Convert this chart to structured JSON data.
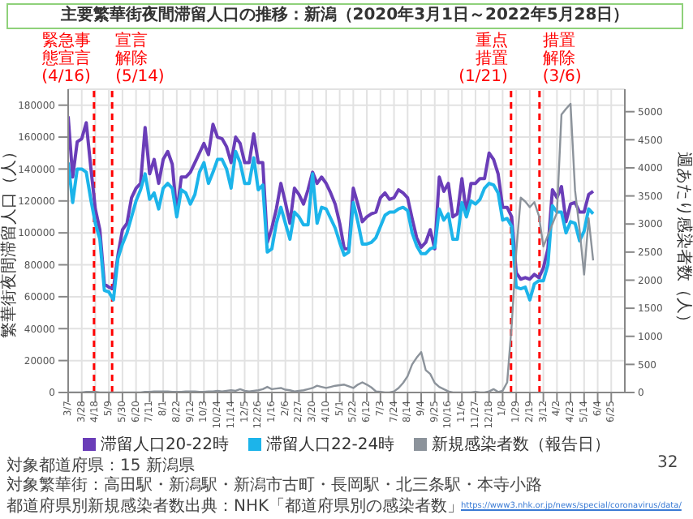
{
  "chart_data": {
    "type": "line",
    "title": "主要繁華街夜間滞留人口の推移：新潟（2020年3月1日～2022年5月28日）",
    "ylabel": "繁華街夜間滞留人口（人）",
    "y2label": "週あたり感染者数（人）",
    "x": [
      "2020-03-07",
      "2020-03-14",
      "2020-03-21",
      "2020-03-28",
      "2020-04-04",
      "2020-04-11",
      "2020-04-18",
      "2020-04-25",
      "2020-05-02",
      "2020-05-09",
      "2020-05-16",
      "2020-05-23",
      "2020-05-30",
      "2020-06-06",
      "2020-06-13",
      "2020-06-20",
      "2020-06-27",
      "2020-07-04",
      "2020-07-11",
      "2020-07-18",
      "2020-07-25",
      "2020-08-01",
      "2020-08-08",
      "2020-08-15",
      "2020-08-22",
      "2020-08-29",
      "2020-09-05",
      "2020-09-12",
      "2020-09-19",
      "2020-09-26",
      "2020-10-03",
      "2020-10-10",
      "2020-10-17",
      "2020-10-24",
      "2020-10-31",
      "2020-11-07",
      "2020-11-14",
      "2020-11-21",
      "2020-11-28",
      "2020-12-05",
      "2020-12-12",
      "2020-12-19",
      "2020-12-26",
      "2021-01-02",
      "2021-01-09",
      "2021-01-16",
      "2021-01-23",
      "2021-01-30",
      "2021-02-06",
      "2021-02-13",
      "2021-02-20",
      "2021-02-27",
      "2021-03-06",
      "2021-03-13",
      "2021-03-20",
      "2021-03-27",
      "2021-04-03",
      "2021-04-10",
      "2021-04-17",
      "2021-04-24",
      "2021-05-01",
      "2021-05-08",
      "2021-05-15",
      "2021-05-22",
      "2021-05-29",
      "2021-06-05",
      "2021-06-12",
      "2021-06-19",
      "2021-06-26",
      "2021-07-03",
      "2021-07-10",
      "2021-07-17",
      "2021-07-24",
      "2021-07-31",
      "2021-08-07",
      "2021-08-14",
      "2021-08-21",
      "2021-08-28",
      "2021-09-04",
      "2021-09-11",
      "2021-09-18",
      "2021-09-25",
      "2021-10-02",
      "2021-10-09",
      "2021-10-16",
      "2021-10-23",
      "2021-10-30",
      "2021-11-06",
      "2021-11-13",
      "2021-11-20",
      "2021-11-27",
      "2021-12-04",
      "2021-12-11",
      "2021-12-18",
      "2021-12-25",
      "2022-01-01",
      "2022-01-08",
      "2022-01-15",
      "2022-01-22",
      "2022-01-29",
      "2022-02-05",
      "2022-02-12",
      "2022-02-19",
      "2022-02-26",
      "2022-03-05",
      "2022-03-12",
      "2022-03-19",
      "2022-03-26",
      "2022-04-02",
      "2022-04-09",
      "2022-04-16",
      "2022-04-23",
      "2022-04-30",
      "2022-05-07",
      "2022-05-14",
      "2022-05-21",
      "2022-05-28"
    ],
    "series": [
      {
        "name": "滞留人口20-22時",
        "color": "#6a3db8",
        "values": [
          173000,
          135000,
          157000,
          159000,
          169000,
          141000,
          115000,
          102000,
          68000,
          66000,
          65000,
          86000,
          102000,
          106000,
          122000,
          128000,
          131000,
          166000,
          137000,
          146000,
          131000,
          146000,
          151000,
          143000,
          112000,
          135000,
          135000,
          138000,
          144000,
          150000,
          156000,
          149000,
          168000,
          160000,
          159000,
          154000,
          144000,
          160000,
          156000,
          144000,
          144000,
          162000,
          144000,
          144000,
          94000,
          103000,
          115000,
          131000,
          119000,
          106000,
          128000,
          124000,
          118000,
          127000,
          138000,
          131000,
          135000,
          131000,
          125000,
          118000,
          106000,
          90000,
          90000,
          128000,
          118000,
          107000,
          110000,
          112000,
          113000,
          122000,
          125000,
          121000,
          122000,
          127000,
          125000,
          122000,
          109000,
          97000,
          91000,
          94000,
          102000,
          90000,
          135000,
          126000,
          131000,
          110000,
          112000,
          134000,
          112000,
          131000,
          131000,
          134000,
          134000,
          150000,
          146000,
          137000,
          116000,
          116000,
          110000,
          75000,
          71000,
          72000,
          71000,
          74000,
          72000,
          78000,
          90000,
          127000,
          122000,
          129000,
          107000,
          118000,
          119000,
          113000,
          113000,
          124000,
          126000
        ]
      },
      {
        "name": "滞留人口22-24時",
        "color": "#1cb4ea",
        "values": [
          144000,
          119000,
          140000,
          140000,
          138000,
          121000,
          106000,
          96000,
          64000,
          63000,
          58000,
          84000,
          93000,
          100000,
          110000,
          120000,
          127000,
          137000,
          121000,
          125000,
          115000,
          128000,
          131000,
          128000,
          110000,
          127000,
          125000,
          118000,
          124000,
          138000,
          144000,
          131000,
          138000,
          146000,
          146000,
          140000,
          128000,
          151000,
          144000,
          131000,
          131000,
          147000,
          127000,
          130000,
          88000,
          90000,
          106000,
          116000,
          106000,
          96000,
          113000,
          110000,
          105000,
          105000,
          137000,
          106000,
          116000,
          115000,
          109000,
          103000,
          94000,
          86000,
          88000,
          119000,
          107000,
          93000,
          93000,
          94000,
          97000,
          104000,
          111000,
          113000,
          113000,
          115000,
          116000,
          114000,
          100000,
          92000,
          87000,
          87000,
          90000,
          91000,
          115000,
          108000,
          112000,
          96000,
          96000,
          119000,
          110000,
          120000,
          118000,
          121000,
          128000,
          131000,
          130000,
          125000,
          108000,
          109000,
          104000,
          66000,
          65000,
          66000,
          58000,
          68000,
          70000,
          70000,
          80000,
          117000,
          113000,
          113000,
          100000,
          107000,
          106000,
          95000,
          101000,
          115000,
          112000
        ]
      },
      {
        "name": "新規感染者数（報告日）",
        "color": "#8c939b",
        "axis": "y2",
        "values": [
          0,
          0,
          0,
          0,
          10,
          10,
          10,
          0,
          0,
          0,
          0,
          0,
          0,
          0,
          0,
          0,
          0,
          10,
          10,
          20,
          20,
          20,
          20,
          10,
          10,
          10,
          20,
          20,
          20,
          10,
          10,
          20,
          20,
          30,
          20,
          30,
          40,
          30,
          60,
          30,
          20,
          30,
          40,
          60,
          100,
          60,
          70,
          80,
          50,
          40,
          20,
          30,
          40,
          60,
          80,
          120,
          100,
          80,
          100,
          120,
          130,
          140,
          110,
          80,
          140,
          180,
          140,
          90,
          20,
          10,
          0,
          0,
          20,
          80,
          170,
          290,
          500,
          620,
          720,
          400,
          330,
          170,
          100,
          60,
          20,
          0,
          0,
          0,
          0,
          0,
          10,
          0,
          0,
          20,
          60,
          10,
          30,
          180,
          1200,
          2500,
          3470,
          3400,
          3300,
          3390,
          3150,
          2600,
          2800,
          3000,
          3200,
          4950,
          5050,
          5140,
          3600,
          2900,
          2100,
          3100,
          2350
        ]
      }
    ],
    "xlim": [
      "2020-03-07",
      "2022-07-16"
    ],
    "xticks": [
      {
        "value": "2020-03-07",
        "label": "3/7"
      },
      {
        "value": "2020-03-28",
        "label": "3/28"
      },
      {
        "value": "2020-04-18",
        "label": "4/18"
      },
      {
        "value": "2020-05-09",
        "label": "5/9"
      },
      {
        "value": "2020-05-30",
        "label": "5/30"
      },
      {
        "value": "2020-06-20",
        "label": "6/20"
      },
      {
        "value": "2020-07-11",
        "label": "7/11"
      },
      {
        "value": "2020-08-01",
        "label": "8/1"
      },
      {
        "value": "2020-08-22",
        "label": "8/22"
      },
      {
        "value": "2020-09-12",
        "label": "9/12"
      },
      {
        "value": "2020-10-03",
        "label": "10/3"
      },
      {
        "value": "2020-10-24",
        "label": "10/24"
      },
      {
        "value": "2020-11-14",
        "label": "11/14"
      },
      {
        "value": "2020-12-05",
        "label": "12/5"
      },
      {
        "value": "2020-12-26",
        "label": "12/26"
      },
      {
        "value": "2021-01-16",
        "label": "1/16"
      },
      {
        "value": "2021-02-06",
        "label": "2/6"
      },
      {
        "value": "2021-02-27",
        "label": "2/27"
      },
      {
        "value": "2021-03-20",
        "label": "3/20"
      },
      {
        "value": "2021-04-10",
        "label": "4/10"
      },
      {
        "value": "2021-05-01",
        "label": "5/1"
      },
      {
        "value": "2021-05-22",
        "label": "5/22"
      },
      {
        "value": "2021-06-12",
        "label": "6/12"
      },
      {
        "value": "2021-07-03",
        "label": "7/3"
      },
      {
        "value": "2021-07-24",
        "label": "7/24"
      },
      {
        "value": "2021-08-14",
        "label": "8/14"
      },
      {
        "value": "2021-09-04",
        "label": "9/4"
      },
      {
        "value": "2021-09-25",
        "label": "9/25"
      },
      {
        "value": "2021-10-16",
        "label": "10/16"
      },
      {
        "value": "2021-11-06",
        "label": "11/6"
      },
      {
        "value": "2021-11-27",
        "label": "11/27"
      },
      {
        "value": "2021-12-18",
        "label": "12/18"
      },
      {
        "value": "2022-01-08",
        "label": "1/8"
      },
      {
        "value": "2022-01-29",
        "label": "1/29"
      },
      {
        "value": "2022-02-19",
        "label": "2/19"
      },
      {
        "value": "2022-03-12",
        "label": "3/12"
      },
      {
        "value": "2022-04-02",
        "label": "4/2"
      },
      {
        "value": "2022-04-23",
        "label": "4/23"
      },
      {
        "value": "2022-05-14",
        "label": "5/14"
      },
      {
        "value": "2022-06-04",
        "label": "6/4"
      },
      {
        "value": "2022-06-25",
        "label": "6/25"
      }
    ],
    "ylim": [
      0,
      190000
    ],
    "yticks": [
      0,
      20000,
      40000,
      60000,
      80000,
      100000,
      120000,
      140000,
      160000,
      180000
    ],
    "y2lim": [
      0,
      5400
    ],
    "y2ticks": [
      0,
      500,
      1000,
      1500,
      2000,
      2500,
      3000,
      3500,
      4000,
      4500,
      5000
    ],
    "ref_lines": [
      {
        "axis": "x",
        "value": "2020-04-16",
        "label": "緊急事態宣言(4/16)",
        "color": "#ff0000",
        "line_style": "dashed"
      },
      {
        "axis": "x",
        "value": "2020-05-14",
        "label": "宣言解除(5/14)",
        "color": "#ff0000",
        "line_style": "dashed"
      },
      {
        "axis": "x",
        "value": "2022-01-21",
        "label": "重点措置(1/21)",
        "color": "#ff0000",
        "line_style": "dashed"
      },
      {
        "axis": "x",
        "value": "2022-03-06",
        "label": "措置解除(3/6)",
        "color": "#ff0000",
        "line_style": "dashed"
      }
    ],
    "annotations": [
      "対象都道府県：15 新潟県",
      "対象繁華街：高田駅・新潟駅・新潟市古町・長岡駅・北三条駅・本寺小路",
      "都道府県別新規感染者数出典：NHK「都道府県別の感染者数」",
      "https://www3.nhk.or.jp/news/special/coronavirus/data/",
      "32"
    ],
    "grid": true,
    "legend": "bottom"
  }
}
